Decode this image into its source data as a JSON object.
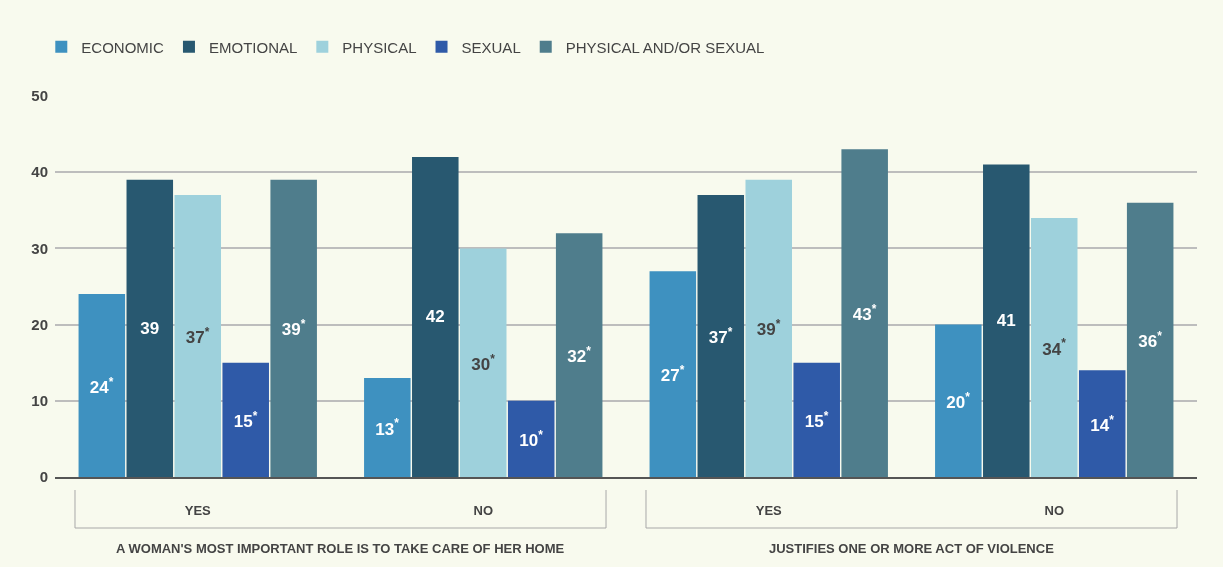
{
  "chart_data": {
    "type": "bar",
    "categories": [
      "YES",
      "NO",
      "YES",
      "NO"
    ],
    "series": [
      {
        "name": "ECONOMIC",
        "color": "#3e91c0",
        "values": [
          24,
          13,
          27,
          20
        ],
        "value_labels": [
          "24$^{*}$",
          "13$^{*}$",
          "27$^{*}$",
          "20$^{*}$"
        ]
      },
      {
        "name": "EMOTIONAL",
        "color": "#285870",
        "values": [
          39,
          42,
          37,
          41
        ],
        "value_labels": [
          "39",
          "42",
          "37$^{*}$",
          "41"
        ]
      },
      {
        "name": "PHYSICAL",
        "color": "#9ed1dc",
        "values": [
          37,
          30,
          39,
          34
        ],
        "value_labels": [
          "37$^{*}$",
          "30$^{*}$",
          "39$^{*}$",
          "34$^{*}$"
        ]
      },
      {
        "name": "SEXUAL",
        "color": "#2f5aa8",
        "values": [
          15,
          10,
          15,
          14
        ],
        "value_labels": [
          "15$^{*}$",
          "10$^{*}$",
          "15$^{*}$",
          "14$^{*}$"
        ]
      },
      {
        "name": "PHYSICAL AND/OR SEXUAL",
        "color": "#4f7d8c",
        "values": [
          39,
          32,
          43,
          36
        ],
        "value_labels": [
          "39$^{*}$",
          "32$^{*}$",
          "43$^{*}$",
          "36$^{*}$"
        ]
      }
    ],
    "annotations": [
      "A WOMAN'S MOST IMPORTANT ROLE IS TO TAKE CARE OF HER HOME",
      "JUSTIFIES ONE OR MORE ACT OF VIOLENCE"
    ],
    "ylim": [
      0,
      50
    ],
    "yticks": [
      0,
      10,
      20,
      30,
      40,
      50
    ],
    "grid": "y",
    "legend": "top left"
  }
}
